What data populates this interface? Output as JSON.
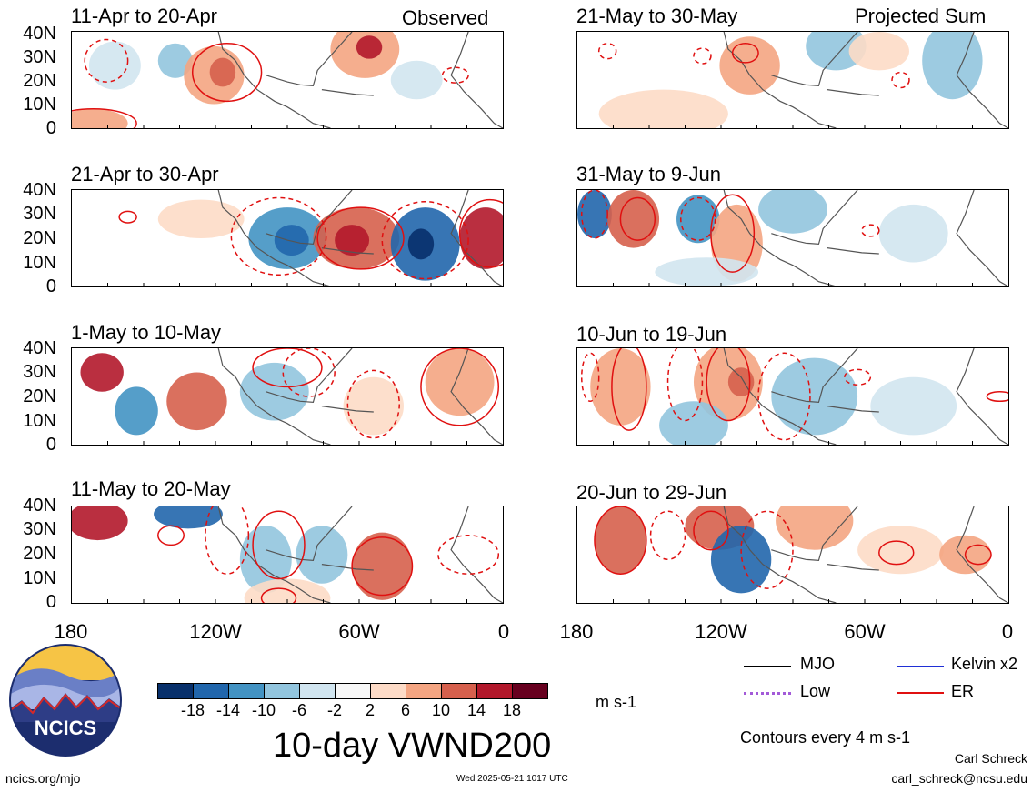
{
  "panels": [
    {
      "title": "11-Apr to 20-Apr",
      "tag": "Observed"
    },
    {
      "title": "21-Apr to 30-Apr",
      "tag": ""
    },
    {
      "title": "1-May to 10-May",
      "tag": ""
    },
    {
      "title": "11-May to 20-May",
      "tag": ""
    },
    {
      "title": "21-May to 30-May",
      "tag": "Projected Sum"
    },
    {
      "title": "31-May to 9-Jun",
      "tag": ""
    },
    {
      "title": "10-Jun to 19-Jun",
      "tag": ""
    },
    {
      "title": "20-Jun to 29-Jun",
      "tag": ""
    }
  ],
  "lat_labels": [
    "40N",
    "30N",
    "20N",
    "10N",
    "0"
  ],
  "lon_labels": [
    "180",
    "120W",
    "60W",
    "0"
  ],
  "colorbar": {
    "colors": [
      "#08306b",
      "#2166ac",
      "#4393c3",
      "#92c5de",
      "#d1e5f0",
      "#f7f7f7",
      "#fddbc7",
      "#f4a582",
      "#d6604d",
      "#b2182b",
      "#67001f"
    ],
    "tick_labels": [
      "-18",
      "-14",
      "-10",
      "-6",
      "-2",
      "2",
      "6",
      "10",
      "14",
      "18"
    ],
    "units": "m s-1"
  },
  "legend": {
    "items": [
      {
        "label": "MJO",
        "color": "#000000"
      },
      {
        "label": "Kelvin x2",
        "color": "#1f2fd6"
      },
      {
        "label": "Low",
        "color": "#a35ad8"
      },
      {
        "label": "ER",
        "color": "#e01010"
      }
    ],
    "contours_note": "Contours every 4 m s-1"
  },
  "main_title": "10-day VWND200",
  "logo_text": "NCICS",
  "footer": {
    "url": "ncics.org/mjo",
    "timestamp": "Wed 2025-05-21 1017 UTC",
    "author": "Carl Schreck",
    "email": "carl_schreck@ncsu.edu"
  }
}
